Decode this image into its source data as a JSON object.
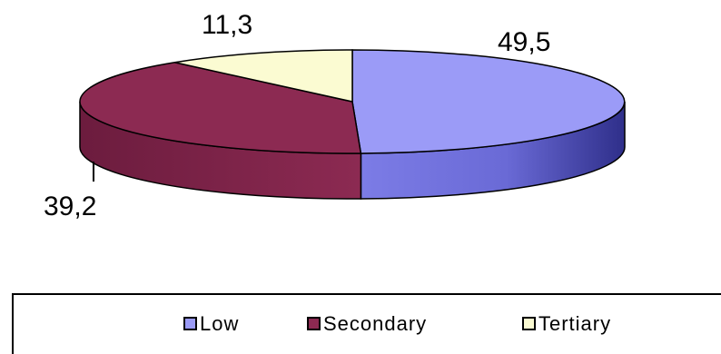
{
  "chart_data": {
    "type": "pie",
    "style": "3d",
    "categories": [
      "Low",
      "Secondary",
      "Tertiary"
    ],
    "values": [
      49.5,
      39.2,
      11.3
    ],
    "data_labels": [
      "49,5",
      "39,2",
      "11,3"
    ],
    "colors": [
      "#9b9bf7",
      "#8c2a52",
      "#fbfbd2"
    ],
    "title": "",
    "legend_position": "bottom"
  }
}
